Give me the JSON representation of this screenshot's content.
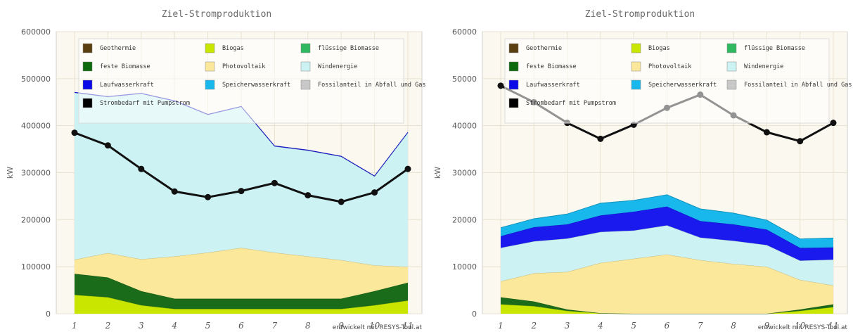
{
  "chart_data": [
    {
      "type": "area",
      "title": "Ziel-Stromproduktion",
      "xlabel": "",
      "ylabel": "kW",
      "credit": "entwickelt mit RESYS-Tool.at",
      "x": [
        1,
        2,
        3,
        4,
        5,
        6,
        7,
        8,
        9,
        10,
        11
      ],
      "x_tick_labels": [
        "1",
        "2",
        "3",
        "4",
        "5",
        "6",
        "7",
        "8",
        "9",
        "10",
        "11"
      ],
      "ylim": [
        0,
        600000
      ],
      "yticks": [
        0,
        100000,
        200000,
        300000,
        400000,
        500000,
        600000
      ],
      "y_tick_labels": [
        "0",
        "100000",
        "200000",
        "300000",
        "400000",
        "500000",
        "600000"
      ],
      "grid": true,
      "legend_position": "top",
      "series": [
        {
          "name": "Biogas",
          "color": "#c8e600",
          "values": [
            40000,
            35000,
            18000,
            10000,
            10000,
            10000,
            10000,
            10000,
            10000,
            18000,
            28000
          ]
        },
        {
          "name": "feste Biomasse",
          "color": "#1a6b1a",
          "values": [
            45000,
            42000,
            30000,
            22000,
            22000,
            22000,
            22000,
            22000,
            22000,
            30000,
            38000
          ]
        },
        {
          "name": "Photovoltaik",
          "color": "#fbe89a",
          "values": [
            30000,
            52000,
            68000,
            90000,
            98000,
            108000,
            98000,
            90000,
            82000,
            55000,
            34000
          ]
        },
        {
          "name": "Windenergie",
          "color": "#ccf2f4",
          "values": [
            355000,
            332000,
            352000,
            330000,
            293000,
            300000,
            226000,
            225000,
            220000,
            189000,
            285000
          ]
        },
        {
          "name": "Laufwasserkraft",
          "color": "#1a1aee",
          "values": [
            1000,
            1000,
            1000,
            1000,
            1000,
            1000,
            1000,
            1000,
            1000,
            1000,
            1000
          ]
        }
      ],
      "line": {
        "name": "Strombedarf mit Pumpstrom",
        "color": "#111111",
        "values": [
          385000,
          358000,
          308000,
          260000,
          248000,
          261000,
          278000,
          252000,
          238000,
          258000,
          308000
        ]
      },
      "legend": [
        {
          "label": "Geothermie",
          "color": "#5a4010"
        },
        {
          "label": "Biogas",
          "color": "#c8e600"
        },
        {
          "label": "flüssige Biomasse",
          "color": "#2fb860"
        },
        {
          "label": "feste Biomasse",
          "color": "#0d6b0d"
        },
        {
          "label": "Photovoltaik",
          "color": "#fbe89a"
        },
        {
          "label": "Windenergie",
          "color": "#ccf2f4"
        },
        {
          "label": "Laufwasserkraft",
          "color": "#0a0ae8"
        },
        {
          "label": "Speicherwasserkraft",
          "color": "#18b8ec"
        },
        {
          "label": "Fossilanteil in Abfall und Gas",
          "color": "#c8c8c8"
        },
        {
          "label": "Strombedarf mit Pumpstrom",
          "color": "#000000"
        }
      ]
    },
    {
      "type": "area",
      "title": "Ziel-Stromproduktion",
      "xlabel": "",
      "ylabel": "kW",
      "credit": "entwickelt mit RESYS-Tool.at",
      "x": [
        1,
        2,
        3,
        4,
        5,
        6,
        7,
        8,
        9,
        10,
        11
      ],
      "x_tick_labels": [
        "1",
        "2",
        "3",
        "4",
        "5",
        "6",
        "7",
        "8",
        "9",
        "10",
        "11"
      ],
      "ylim": [
        0,
        60000
      ],
      "yticks": [
        0,
        10000,
        20000,
        30000,
        40000,
        50000,
        60000
      ],
      "y_tick_labels": [
        "0",
        "10000",
        "20000",
        "30000",
        "40000",
        "50000",
        "60000"
      ],
      "grid": true,
      "legend_position": "top",
      "series": [
        {
          "name": "Biogas",
          "color": "#c8e600",
          "values": [
            2000,
            1600,
            600,
            100,
            0,
            0,
            0,
            0,
            0,
            600,
            1400
          ]
        },
        {
          "name": "feste Biomasse",
          "color": "#1a6b1a",
          "values": [
            1500,
            1000,
            300,
            0,
            0,
            0,
            0,
            0,
            0,
            300,
            600
          ]
        },
        {
          "name": "Photovoltaik",
          "color": "#fbe89a",
          "values": [
            3400,
            6000,
            8000,
            10700,
            11700,
            12600,
            11400,
            10600,
            10000,
            6300,
            4000
          ]
        },
        {
          "name": "Windenergie",
          "color": "#ccf2f4",
          "values": [
            7100,
            6800,
            7100,
            6600,
            6000,
            6200,
            4800,
            4900,
            4600,
            4100,
            5500
          ]
        },
        {
          "name": "Laufwasserkraft",
          "color": "#1a1aee",
          "values": [
            2500,
            3000,
            3000,
            3500,
            4000,
            4000,
            3500,
            3500,
            3300,
            2700,
            2600
          ]
        },
        {
          "name": "Speicherwasserkraft",
          "color": "#18b8ec",
          "values": [
            1800,
            1800,
            2200,
            2600,
            2400,
            2500,
            2600,
            2400,
            2000,
            1900,
            2000
          ]
        }
      ],
      "line": {
        "name": "Strombedarf mit Pumpstrom",
        "color": "#111111",
        "values": [
          48500,
          45000,
          40600,
          37200,
          40200,
          43800,
          46600,
          42200,
          38600,
          36700,
          40600
        ]
      },
      "legend": [
        {
          "label": "Geothermie",
          "color": "#5a4010"
        },
        {
          "label": "Biogas",
          "color": "#c8e600"
        },
        {
          "label": "flüssige Biomasse",
          "color": "#2fb860"
        },
        {
          "label": "feste Biomasse",
          "color": "#0d6b0d"
        },
        {
          "label": "Photovoltaik",
          "color": "#fbe89a"
        },
        {
          "label": "Windenergie",
          "color": "#ccf2f4"
        },
        {
          "label": "Laufwasserkraft",
          "color": "#0a0ae8"
        },
        {
          "label": "Speicherwasserkraft",
          "color": "#18b8ec"
        },
        {
          "label": "Fossilanteil in Abfall und Gas",
          "color": "#c8c8c8"
        },
        {
          "label": "Strombedarf mit Pumpstrom",
          "color": "#000000"
        }
      ]
    }
  ]
}
